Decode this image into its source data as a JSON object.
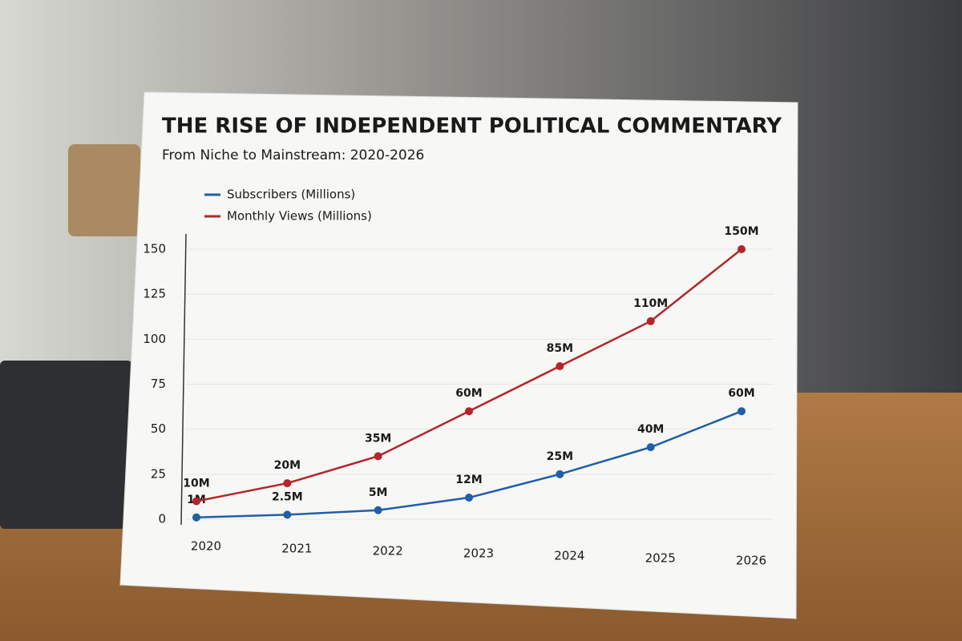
{
  "chart_data": {
    "type": "line",
    "title": "THE RISE OF INDEPENDENT POLITICAL COMMENTARY",
    "subtitle": "From Niche to Mainstream: 2020-2026",
    "categories": [
      "2020",
      "2021",
      "2022",
      "2023",
      "2024",
      "2025",
      "2026"
    ],
    "series": [
      {
        "name": "Subscribers (Millions)",
        "color": "#1f5fa8",
        "values": [
          1,
          2.5,
          5,
          12,
          25,
          40,
          60
        ],
        "value_labels": [
          "1M",
          "2.5M",
          "5M",
          "12M",
          "25M",
          "40M",
          "60M"
        ]
      },
      {
        "name": "Monthly Views (Millions)",
        "color": "#b3262a",
        "values": [
          10,
          20,
          35,
          60,
          85,
          110,
          150
        ],
        "value_labels": [
          "10M",
          "20M",
          "35M",
          "60M",
          "85M",
          "110M",
          "150M"
        ]
      }
    ],
    "ylim": [
      0,
      150
    ],
    "yticks": [
      0,
      25,
      50,
      75,
      100,
      125,
      150
    ],
    "grid": true,
    "legend": "upper left"
  }
}
